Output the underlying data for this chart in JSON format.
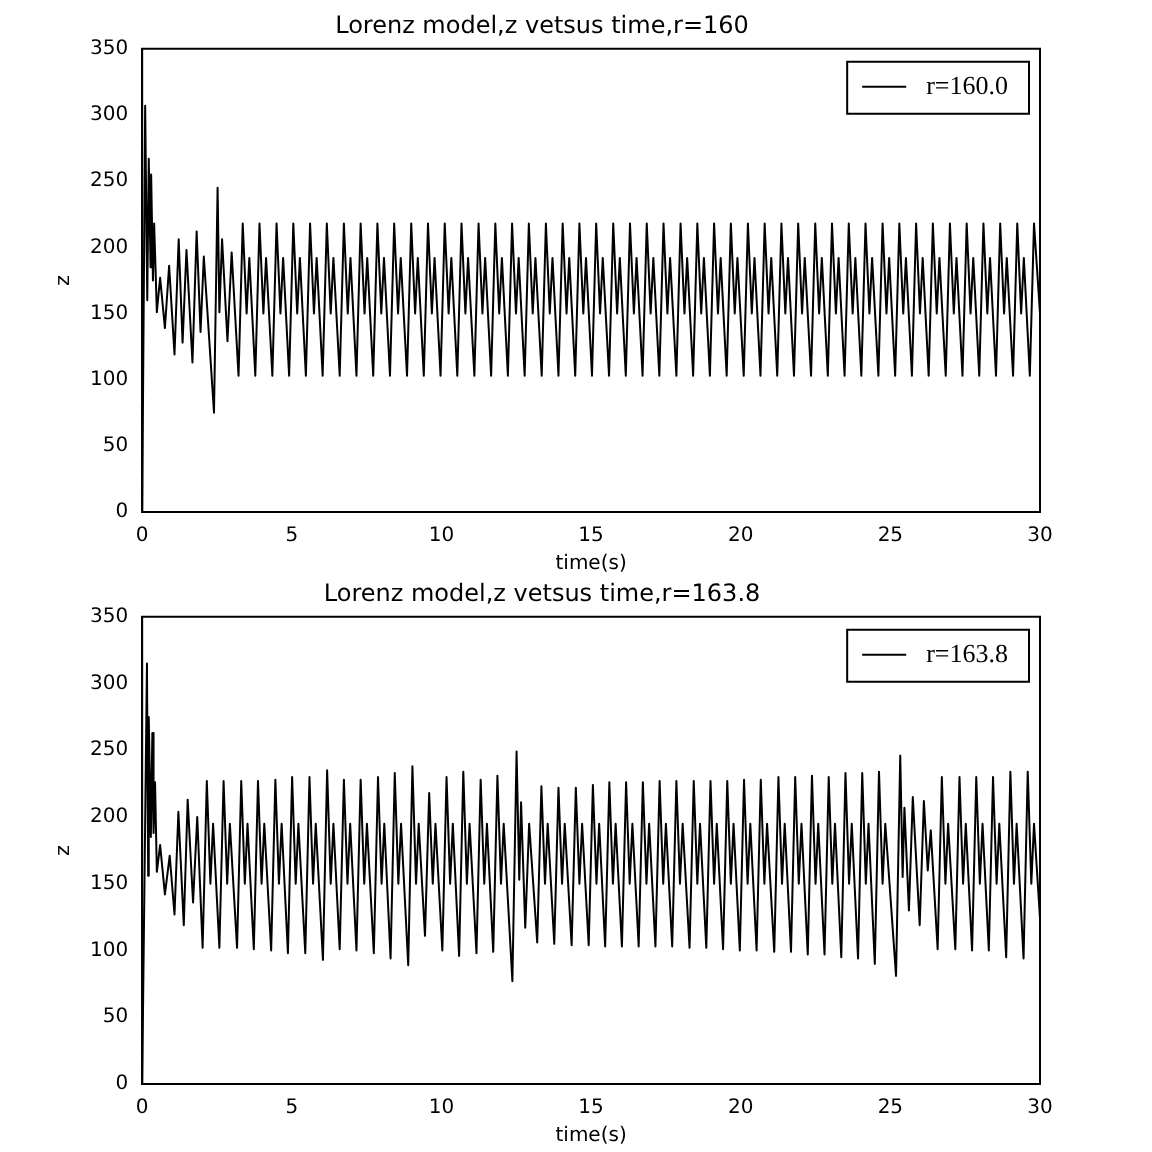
{
  "chart_data": [
    {
      "type": "line",
      "title": "Lorenz model,z vetsus time,r=160",
      "xlabel": "time(s)",
      "ylabel": "z",
      "xlim": [
        0,
        30
      ],
      "ylim": [
        0,
        350
      ],
      "xticks": [
        0,
        5,
        10,
        15,
        20,
        25,
        30
      ],
      "yticks": [
        0,
        50,
        100,
        150,
        200,
        250,
        300,
        350
      ],
      "legend": "top right",
      "line_style": "solid",
      "x": [
        0,
        0.1,
        0.17,
        0.22,
        0.28,
        0.3,
        0.36,
        0.4,
        0.49,
        0.6,
        0.76,
        0.9,
        1.08,
        1.22,
        1.35,
        1.48,
        1.68,
        1.82,
        1.95,
        2.06,
        2.4,
        2.52,
        2.58,
        2.67,
        2.85,
        2.99,
        3.22,
        3.36,
        3.49,
        3.58,
        3.78,
        3.92,
        4.05,
        4.14,
        4.35,
        4.49,
        4.62,
        4.71,
        4.91,
        5.05,
        5.18,
        5.27,
        5.47,
        5.61,
        5.74,
        5.83,
        6.03,
        6.17,
        6.3,
        6.39,
        6.6,
        6.74,
        6.87,
        6.96,
        7.16,
        7.3,
        7.43,
        7.52,
        7.72,
        7.86,
        7.99,
        8.08,
        8.28,
        8.42,
        8.55,
        8.64,
        8.85,
        8.99,
        9.12,
        9.21,
        9.41,
        9.55,
        9.68,
        9.77,
        9.97,
        10.11,
        10.24,
        10.33,
        10.53,
        10.67,
        10.8,
        10.89,
        11.1,
        11.24,
        11.37,
        11.46,
        11.66,
        11.8,
        11.93,
        12.02,
        12.22,
        12.36,
        12.49,
        12.58,
        12.78,
        12.92,
        13.05,
        13.14,
        13.35,
        13.49,
        13.62,
        13.71,
        13.91,
        14.05,
        14.18,
        14.27,
        14.47,
        14.61,
        14.74,
        14.83,
        15.03,
        15.17,
        15.3,
        15.39,
        15.6,
        15.74,
        15.87,
        15.96,
        16.16,
        16.3,
        16.43,
        16.52,
        16.72,
        16.86,
        16.99,
        17.08,
        17.28,
        17.42,
        17.55,
        17.64,
        17.85,
        17.99,
        18.12,
        18.21,
        18.41,
        18.55,
        18.68,
        18.77,
        18.97,
        19.11,
        19.24,
        19.33,
        19.53,
        19.67,
        19.8,
        19.89,
        20.1,
        20.24,
        20.37,
        20.46,
        20.66,
        20.8,
        20.93,
        21.02,
        21.22,
        21.36,
        21.49,
        21.58,
        21.78,
        21.92,
        22.05,
        22.14,
        22.35,
        22.49,
        22.62,
        22.71,
        22.91,
        23.05,
        23.18,
        23.27,
        23.47,
        23.61,
        23.74,
        23.83,
        24.03,
        24.17,
        24.3,
        24.39,
        24.6,
        24.74,
        24.87,
        24.96,
        25.16,
        25.3,
        25.43,
        25.52,
        25.72,
        25.86,
        25.99,
        26.08,
        26.28,
        26.42,
        26.55,
        26.64,
        26.85,
        26.99,
        27.12,
        27.21,
        27.41,
        27.55,
        27.68,
        27.77,
        27.97,
        28.11,
        28.24,
        28.33,
        28.53,
        28.67,
        28.8,
        28.89,
        29.1,
        29.24,
        29.37,
        29.46,
        29.66,
        29.8,
        30.0
      ],
      "series": [
        {
          "name": "r=160.0",
          "color": "#000000",
          "values": [
            0,
            307,
            160,
            267,
            185,
            255,
            175,
            218,
            151,
            177,
            139,
            186,
            119,
            206,
            128,
            198,
            113,
            212,
            136,
            193,
            75,
            245,
            151,
            206,
            129,
            196,
            103,
            218,
            150,
            192,
            103,
            218,
            150,
            192,
            103,
            218,
            150,
            192,
            103,
            218,
            150,
            192,
            103,
            218,
            150,
            192,
            103,
            218,
            150,
            192,
            103,
            218,
            150,
            192,
            103,
            218,
            150,
            192,
            103,
            218,
            150,
            192,
            103,
            218,
            150,
            192,
            103,
            218,
            150,
            192,
            103,
            218,
            150,
            192,
            103,
            218,
            150,
            192,
            103,
            218,
            150,
            192,
            103,
            218,
            150,
            192,
            103,
            218,
            150,
            192,
            103,
            218,
            150,
            192,
            103,
            218,
            150,
            192,
            103,
            218,
            150,
            192,
            103,
            218,
            150,
            192,
            103,
            218,
            150,
            192,
            103,
            218,
            150,
            192,
            103,
            218,
            150,
            192,
            103,
            218,
            150,
            192,
            103,
            218,
            150,
            192,
            103,
            218,
            150,
            192,
            103,
            218,
            150,
            192,
            103,
            218,
            150,
            192,
            103,
            218,
            150,
            192,
            103,
            218,
            150,
            192,
            103,
            218,
            150,
            192,
            103,
            218,
            150,
            192,
            103,
            218,
            150,
            192,
            103,
            218,
            150,
            192,
            103,
            218,
            150,
            192,
            103,
            218,
            150,
            192,
            103,
            218,
            150,
            192,
            103,
            218,
            150,
            192,
            103,
            218,
            150,
            192,
            103,
            218,
            150,
            192,
            103,
            218,
            150,
            192,
            103,
            218,
            150,
            192,
            103,
            218,
            150,
            192,
            103,
            218,
            150,
            192,
            103,
            218,
            150,
            192,
            103,
            218,
            150,
            192,
            103,
            218,
            150,
            192,
            103,
            218,
            150
          ]
        }
      ]
    },
    {
      "type": "line",
      "title": "Lorenz model,z vetsus time,r=163.8",
      "xlabel": "time(s)",
      "ylabel": "z",
      "xlim": [
        0,
        30
      ],
      "ylim": [
        0,
        350
      ],
      "xticks": [
        0,
        5,
        10,
        15,
        20,
        25,
        30
      ],
      "yticks": [
        0,
        50,
        100,
        150,
        200,
        250,
        300,
        350
      ],
      "legend": "top right",
      "line_style": "solid",
      "x": [
        0,
        0.16,
        0.2,
        0.22,
        0.29,
        0.34,
        0.38,
        0.43,
        0.49,
        0.6,
        0.76,
        0.92,
        1.08,
        1.21,
        1.39,
        1.52,
        1.7,
        1.84,
        2.02,
        2.16,
        2.28,
        2.37,
        2.58,
        2.72,
        2.84,
        2.93,
        3.17,
        3.31,
        3.43,
        3.52,
        3.73,
        3.87,
        3.99,
        4.08,
        4.31,
        4.45,
        4.57,
        4.66,
        4.87,
        5.01,
        5.13,
        5.22,
        5.45,
        5.59,
        5.71,
        5.8,
        6.04,
        6.18,
        6.3,
        6.39,
        6.6,
        6.74,
        6.86,
        6.95,
        7.16,
        7.3,
        7.42,
        7.51,
        7.74,
        7.88,
        8.0,
        8.09,
        8.3,
        8.44,
        8.56,
        8.65,
        8.89,
        9.03,
        9.15,
        9.24,
        9.45,
        9.59,
        9.71,
        9.8,
        10.03,
        10.17,
        10.29,
        10.38,
        10.59,
        10.73,
        10.85,
        10.94,
        11.17,
        11.31,
        11.43,
        11.52,
        11.73,
        11.87,
        11.99,
        12.08,
        12.37,
        12.51,
        12.6,
        12.66,
        12.8,
        12.93,
        13.2,
        13.34,
        13.46,
        13.55,
        13.77,
        13.91,
        14.03,
        14.12,
        14.35,
        14.49,
        14.61,
        14.7,
        14.92,
        15.06,
        15.18,
        15.27,
        15.47,
        15.61,
        15.73,
        15.82,
        16.03,
        16.17,
        16.29,
        16.38,
        16.59,
        16.73,
        16.85,
        16.94,
        17.15,
        17.29,
        17.41,
        17.5,
        17.71,
        17.85,
        17.97,
        18.06,
        18.29,
        18.43,
        18.55,
        18.64,
        18.85,
        18.99,
        19.11,
        19.2,
        19.41,
        19.55,
        19.67,
        19.76,
        19.97,
        20.11,
        20.23,
        20.32,
        20.53,
        20.67,
        20.79,
        20.88,
        21.12,
        21.26,
        21.38,
        21.47,
        21.68,
        21.82,
        21.94,
        22.03,
        22.24,
        22.38,
        22.5,
        22.59,
        22.8,
        22.94,
        23.06,
        23.15,
        23.36,
        23.5,
        23.62,
        23.71,
        23.92,
        24.06,
        24.18,
        24.27,
        24.48,
        24.62,
        24.74,
        24.83,
        25.19,
        25.33,
        25.41,
        25.47,
        25.62,
        25.75,
        25.98,
        26.12,
        26.25,
        26.35,
        26.58,
        26.72,
        26.84,
        26.93,
        27.17,
        27.31,
        27.43,
        27.52,
        27.73,
        27.87,
        27.99,
        28.08,
        28.29,
        28.43,
        28.55,
        28.64,
        28.87,
        29.01,
        29.13,
        29.22,
        29.45,
        29.59,
        29.71,
        29.8,
        30.0
      ],
      "series": [
        {
          "name": "r=163.8",
          "color": "#000000",
          "values": [
            0,
            315,
            156,
            275,
            185,
            263,
            188,
            226,
            159,
            179,
            142,
            171,
            127,
            204,
            119,
            213,
            136,
            200,
            102,
            227,
            150,
            195,
            102,
            227,
            150,
            195,
            102,
            227,
            150,
            195,
            101,
            227,
            150,
            195,
            100,
            228,
            150,
            195,
            98,
            230,
            150,
            195,
            98,
            230,
            150,
            195,
            93,
            235,
            150,
            195,
            101,
            228,
            150,
            195,
            100,
            228,
            150,
            195,
            98,
            230,
            150,
            195,
            94,
            233,
            150,
            195,
            89,
            238,
            150,
            195,
            111,
            218,
            150,
            195,
            100,
            230,
            150,
            195,
            96,
            234,
            150,
            195,
            98,
            228,
            150,
            195,
            99,
            231,
            150,
            195,
            77,
            249,
            153,
            211,
            117,
            195,
            106,
            223,
            150,
            195,
            105,
            222,
            150,
            195,
            104,
            222,
            150,
            195,
            104,
            224,
            150,
            195,
            103,
            226,
            150,
            195,
            103,
            226,
            150,
            195,
            103,
            226,
            150,
            195,
            103,
            227,
            150,
            195,
            103,
            227,
            150,
            195,
            102,
            227,
            150,
            195,
            102,
            227,
            150,
            195,
            101,
            227,
            150,
            195,
            100,
            228,
            150,
            195,
            100,
            228,
            150,
            195,
            99,
            230,
            150,
            195,
            99,
            230,
            150,
            195,
            97,
            231,
            150,
            195,
            97,
            230,
            150,
            195,
            95,
            233,
            150,
            195,
            94,
            233,
            150,
            195,
            90,
            234,
            150,
            195,
            81,
            246,
            155,
            207,
            130,
            215,
            119,
            212,
            160,
            190,
            101,
            230,
            150,
            195,
            101,
            230,
            150,
            195,
            100,
            230,
            150,
            195,
            100,
            230,
            150,
            195,
            95,
            234,
            150,
            195,
            94,
            234,
            150,
            195,
            124
          ]
        }
      ]
    }
  ]
}
